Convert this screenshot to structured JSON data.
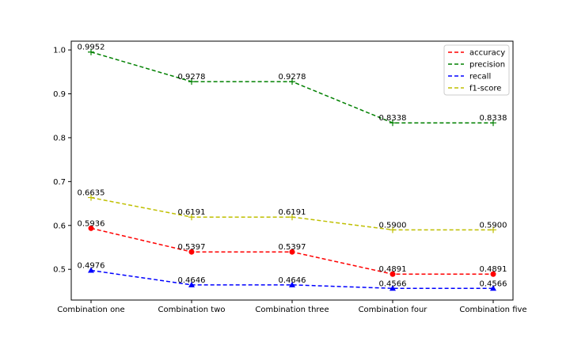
{
  "chart_data": {
    "type": "line",
    "categories": [
      "Combination one",
      "Combination two",
      "Combination three",
      "Combination four",
      "Combination five"
    ],
    "ylim": [
      0.43,
      1.02
    ],
    "yticks": [
      "0.5",
      "0.6",
      "0.7",
      "0.8",
      "0.9",
      "1.0"
    ],
    "grid": false,
    "legend_position": "top-right",
    "series": [
      {
        "name": "accuracy",
        "values": [
          0.5936,
          0.5397,
          0.5397,
          0.4891,
          0.4891
        ],
        "labels": [
          "0.5936",
          "0.5397",
          "0.5397",
          "0.4891",
          "0.4891"
        ],
        "color": "#ff0000",
        "marker": "circle"
      },
      {
        "name": "precision",
        "values": [
          0.9952,
          0.9278,
          0.9278,
          0.8338,
          0.8338
        ],
        "labels": [
          "0.9952",
          "0.9278",
          "0.9278",
          "0.8338",
          "0.8338"
        ],
        "color": "#008000",
        "marker": "plus"
      },
      {
        "name": "recall",
        "values": [
          0.4976,
          0.4646,
          0.4646,
          0.4566,
          0.4566
        ],
        "labels": [
          "0.4976",
          "0.4646",
          "0.4646",
          "0.4566",
          "0.4566"
        ],
        "color": "#0000ff",
        "marker": "triangle"
      },
      {
        "name": "f1-score",
        "values": [
          0.6635,
          0.6191,
          0.6191,
          0.59,
          0.59
        ],
        "labels": [
          "0.6635",
          "0.6191",
          "0.6191",
          "0.5900",
          "0.5900"
        ],
        "color": "#bfbf00",
        "marker": "plus"
      }
    ]
  }
}
